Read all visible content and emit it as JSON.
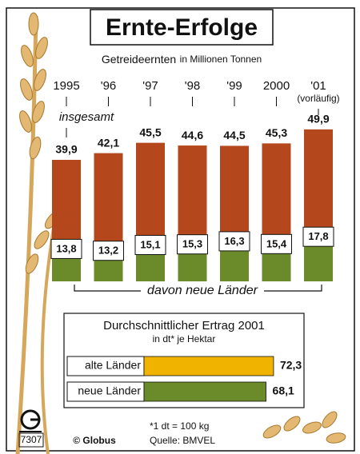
{
  "chart_data": [
    {
      "type": "bar",
      "title": "Ernte-Erfolge",
      "subtitle": "Getreideernten",
      "unit": "in Millionen Tonnen",
      "categories": [
        "1995",
        "'96",
        "'97",
        "'98",
        "'99",
        "2000",
        "'01"
      ],
      "annotation": "(vorläufig)",
      "series": [
        {
          "name": "insgesamt",
          "color": "#b5471c",
          "values": [
            39.9,
            42.1,
            45.5,
            44.6,
            44.5,
            45.3,
            49.9
          ],
          "value_labels": [
            "39,9",
            "42,1",
            "45,5",
            "44,6",
            "44,5",
            "45,3",
            "49,9"
          ]
        },
        {
          "name": "davon neue Länder",
          "color": "#6b8a2a",
          "values": [
            13.8,
            13.2,
            15.1,
            15.3,
            16.3,
            15.4,
            17.8
          ],
          "value_labels": [
            "13,8",
            "13,2",
            "15,1",
            "15,3",
            "16,3",
            "15,4",
            "17,8"
          ]
        }
      ]
    },
    {
      "type": "barh",
      "title": "Durchschnittlicher Ertrag 2001",
      "subtitle": "in dt* je Hektar",
      "categories": [
        "alte Länder",
        "neue Länder"
      ],
      "values": [
        72.3,
        68.1
      ],
      "value_labels": [
        "72,3",
        "68,1"
      ],
      "colors": [
        "#f0b400",
        "#6b8a2a"
      ],
      "note": "*1 dt = 100 kg"
    }
  ],
  "footer": {
    "source": "Quelle: BMVEL",
    "publisher": "© Globus",
    "number": "7307"
  }
}
